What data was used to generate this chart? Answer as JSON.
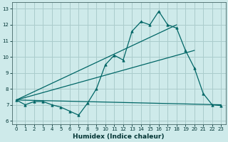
{
  "xlabel": "Humidex (Indice chaleur)",
  "bg_color": "#ceeaea",
  "grid_color": "#aacccc",
  "line_color": "#006666",
  "xlim": [
    -0.5,
    23.5
  ],
  "ylim": [
    5.8,
    13.4
  ],
  "xticks": [
    0,
    1,
    2,
    3,
    4,
    5,
    6,
    7,
    8,
    9,
    10,
    11,
    12,
    13,
    14,
    15,
    16,
    17,
    18,
    19,
    20,
    21,
    22,
    23
  ],
  "yticks": [
    6,
    7,
    8,
    9,
    10,
    11,
    12,
    13
  ],
  "line1_x": [
    0,
    1,
    2,
    3,
    4,
    5,
    6,
    7,
    8,
    9,
    10,
    11,
    12,
    13,
    14,
    15,
    16,
    17,
    18,
    19,
    20,
    21,
    22,
    23
  ],
  "line1_y": [
    7.3,
    7.0,
    7.2,
    7.2,
    7.0,
    6.85,
    6.6,
    6.35,
    7.1,
    8.0,
    9.5,
    10.1,
    9.8,
    11.6,
    12.2,
    12.0,
    12.85,
    12.0,
    11.8,
    10.4,
    9.3,
    7.7,
    7.0,
    6.95
  ],
  "line2_x": [
    0,
    18
  ],
  "line2_y": [
    7.3,
    12.0
  ],
  "line3_x": [
    0,
    20
  ],
  "line3_y": [
    7.3,
    10.4
  ],
  "line4_x": [
    0,
    23
  ],
  "line4_y": [
    7.3,
    7.0
  ]
}
